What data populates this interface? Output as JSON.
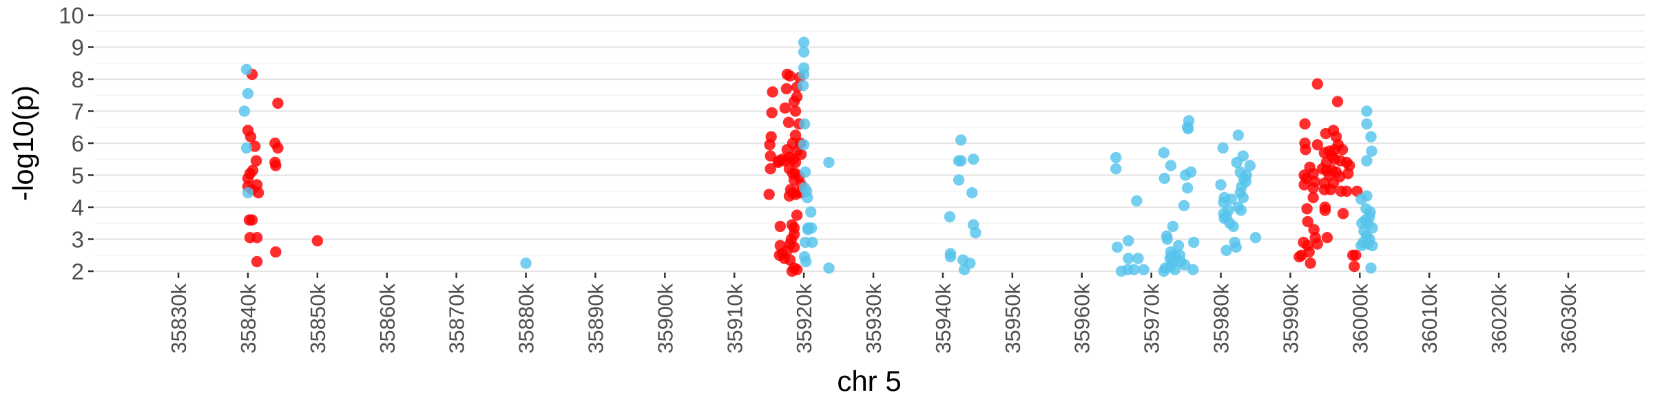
{
  "chart_data": {
    "type": "scatter",
    "xlabel": "chr 5",
    "ylabel": "-log10(p)",
    "xlim": [
      35818,
      36041
    ],
    "ylim": [
      2,
      10
    ],
    "x_ticks": [
      35830,
      35840,
      35850,
      35860,
      35870,
      35880,
      35890,
      35900,
      35910,
      35920,
      35930,
      35940,
      35950,
      35960,
      35970,
      35980,
      35990,
      36000,
      36010,
      36020,
      36030
    ],
    "x_tick_labels": [
      "35830k",
      "35840k",
      "35850k",
      "35860k",
      "35870k",
      "35880k",
      "35890k",
      "35900k",
      "35910k",
      "35920k",
      "35930k",
      "35940k",
      "35950k",
      "35960k",
      "35970k",
      "35980k",
      "35990k",
      "36000k",
      "36010k",
      "36020k",
      "36030k"
    ],
    "y_ticks": [
      2,
      3,
      4,
      5,
      6,
      7,
      8,
      9,
      10
    ],
    "y_tick_labels": [
      "2",
      "3",
      "4",
      "5",
      "6",
      "7",
      "8",
      "9",
      "10"
    ],
    "grid": true,
    "series": [
      {
        "color": "#FF0000",
        "points": [
          [
            35840.6,
            8.15
          ],
          [
            35844.3,
            7.25
          ],
          [
            35840.0,
            6.4
          ],
          [
            35840.4,
            6.2
          ],
          [
            35841.0,
            5.9
          ],
          [
            35843.9,
            6.0
          ],
          [
            35844.3,
            5.85
          ],
          [
            35841.2,
            5.45
          ],
          [
            35843.9,
            5.4
          ],
          [
            35844.0,
            5.3
          ],
          [
            35840.7,
            5.15
          ],
          [
            35840.3,
            5.05
          ],
          [
            35840.0,
            4.9
          ],
          [
            35840.0,
            4.65
          ],
          [
            35841.3,
            4.7
          ],
          [
            35840.6,
            4.55
          ],
          [
            35841.5,
            4.45
          ],
          [
            35840.2,
            3.6
          ],
          [
            35840.6,
            3.6
          ],
          [
            35840.3,
            3.05
          ],
          [
            35841.3,
            3.05
          ],
          [
            35844.0,
            2.6
          ],
          [
            35841.3,
            2.3
          ],
          [
            35850.0,
            2.95
          ],
          [
            35917.6,
            8.15
          ],
          [
            35918.0,
            8.1
          ],
          [
            35919.4,
            8.05
          ],
          [
            35919.0,
            7.75
          ],
          [
            35917.5,
            7.7
          ],
          [
            35915.5,
            7.6
          ],
          [
            35919.0,
            7.45
          ],
          [
            35918.6,
            7.3
          ],
          [
            35917.3,
            7.1
          ],
          [
            35915.4,
            6.95
          ],
          [
            35918.8,
            7.0
          ],
          [
            35917.8,
            6.65
          ],
          [
            35919.3,
            6.6
          ],
          [
            35915.3,
            6.2
          ],
          [
            35915.1,
            5.95
          ],
          [
            35918.8,
            6.25
          ],
          [
            35918.4,
            6.0
          ],
          [
            35919.5,
            6.0
          ],
          [
            35917.6,
            5.8
          ],
          [
            35919.0,
            5.75
          ],
          [
            35915.2,
            5.6
          ],
          [
            35919.6,
            5.65
          ],
          [
            35916.9,
            5.5
          ],
          [
            35916.4,
            5.45
          ],
          [
            35917.3,
            5.45
          ],
          [
            35917.9,
            5.55
          ],
          [
            35918.5,
            5.5
          ],
          [
            35918.8,
            5.4
          ],
          [
            35916.3,
            5.4
          ],
          [
            35915.2,
            5.2
          ],
          [
            35917.9,
            5.2
          ],
          [
            35918.4,
            5.05
          ],
          [
            35918.8,
            5.05
          ],
          [
            35918.6,
            4.85
          ],
          [
            35919.3,
            4.95
          ],
          [
            35919.6,
            4.7
          ],
          [
            35918.1,
            4.55
          ],
          [
            35918.4,
            4.45
          ],
          [
            35917.9,
            4.35
          ],
          [
            35918.8,
            4.4
          ],
          [
            35919.5,
            4.45
          ],
          [
            35915.0,
            4.4
          ],
          [
            35919.0,
            3.75
          ],
          [
            35918.3,
            3.45
          ],
          [
            35918.6,
            3.35
          ],
          [
            35916.6,
            3.4
          ],
          [
            35918.6,
            3.15
          ],
          [
            35918.2,
            3.0
          ],
          [
            35918.0,
            2.85
          ],
          [
            35916.6,
            2.8
          ],
          [
            35918.6,
            2.75
          ],
          [
            35917.6,
            2.65
          ],
          [
            35916.9,
            2.55
          ],
          [
            35916.5,
            2.5
          ],
          [
            35917.2,
            2.4
          ],
          [
            35918.0,
            2.35
          ],
          [
            35918.6,
            2.1
          ],
          [
            35919.0,
            2.05
          ],
          [
            35918.3,
            2.0
          ],
          [
            35993.9,
            7.85
          ],
          [
            35996.8,
            7.3
          ],
          [
            35992.1,
            6.6
          ],
          [
            35995.1,
            6.3
          ],
          [
            35996.2,
            6.4
          ],
          [
            35996.6,
            6.2
          ],
          [
            35992.1,
            6.0
          ],
          [
            35993.9,
            5.95
          ],
          [
            35996.9,
            5.95
          ],
          [
            35994.9,
            5.7
          ],
          [
            35995.6,
            5.75
          ],
          [
            35996.4,
            5.8
          ],
          [
            35992.2,
            5.8
          ],
          [
            35997.5,
            5.8
          ],
          [
            35996.0,
            5.6
          ],
          [
            35996.4,
            5.5
          ],
          [
            35995.2,
            5.4
          ],
          [
            35997.2,
            5.45
          ],
          [
            35998.1,
            5.4
          ],
          [
            35998.5,
            5.3
          ],
          [
            35992.8,
            5.25
          ],
          [
            35994.6,
            5.2
          ],
          [
            35995.2,
            5.15
          ],
          [
            35996.0,
            5.15
          ],
          [
            35996.6,
            5.1
          ],
          [
            35993.3,
            5.05
          ],
          [
            35992.0,
            5.0
          ],
          [
            35995.6,
            5.0
          ],
          [
            35997.1,
            4.95
          ],
          [
            35998.3,
            5.05
          ],
          [
            35992.3,
            4.9
          ],
          [
            35993.5,
            4.8
          ],
          [
            35994.9,
            4.75
          ],
          [
            35996.2,
            4.75
          ],
          [
            35992.0,
            4.7
          ],
          [
            35993.3,
            4.6
          ],
          [
            35994.9,
            4.55
          ],
          [
            35995.8,
            4.55
          ],
          [
            35997.3,
            4.5
          ],
          [
            35998.1,
            4.5
          ],
          [
            35993.3,
            4.3
          ],
          [
            35995.0,
            4.0
          ],
          [
            35992.4,
            3.95
          ],
          [
            35995.0,
            3.9
          ],
          [
            35997.6,
            3.8
          ],
          [
            35992.5,
            3.55
          ],
          [
            35993.4,
            3.3
          ],
          [
            35993.6,
            3.05
          ],
          [
            35995.3,
            3.05
          ],
          [
            35991.9,
            2.9
          ],
          [
            35992.5,
            2.8
          ],
          [
            35993.9,
            2.85
          ],
          [
            35992.7,
            2.6
          ],
          [
            35991.6,
            2.5
          ],
          [
            35991.3,
            2.45
          ],
          [
            35992.9,
            2.25
          ],
          [
            35999.0,
            2.5
          ],
          [
            35999.4,
            2.5
          ],
          [
            35999.2,
            2.15
          ],
          [
            35999.6,
            4.5
          ]
        ]
      },
      {
        "color": "#56C3EB",
        "points": [
          [
            35839.8,
            8.3
          ],
          [
            35840.0,
            7.55
          ],
          [
            35839.5,
            7.0
          ],
          [
            35839.8,
            5.85
          ],
          [
            35840.0,
            4.45
          ],
          [
            35880.0,
            2.25
          ],
          [
            35920.0,
            9.15
          ],
          [
            35920.0,
            8.85
          ],
          [
            35920.0,
            8.35
          ],
          [
            35920.0,
            8.15
          ],
          [
            35919.9,
            7.8
          ],
          [
            35920.1,
            6.6
          ],
          [
            35920.0,
            5.95
          ],
          [
            35920.2,
            5.1
          ],
          [
            35920.1,
            4.6
          ],
          [
            35920.4,
            4.5
          ],
          [
            35920.5,
            4.3
          ],
          [
            35921.0,
            3.85
          ],
          [
            35920.6,
            3.35
          ],
          [
            35921.1,
            3.35
          ],
          [
            35920.6,
            3.3
          ],
          [
            35920.2,
            2.9
          ],
          [
            35921.2,
            2.9
          ],
          [
            35920.1,
            2.45
          ],
          [
            35920.3,
            2.3
          ],
          [
            35923.6,
            5.4
          ],
          [
            35923.6,
            2.1
          ],
          [
            35942.6,
            6.1
          ],
          [
            35942.3,
            5.45
          ],
          [
            35942.6,
            5.45
          ],
          [
            35944.4,
            5.5
          ],
          [
            35942.3,
            4.85
          ],
          [
            35944.2,
            4.45
          ],
          [
            35941.0,
            3.7
          ],
          [
            35944.4,
            3.45
          ],
          [
            35944.7,
            3.2
          ],
          [
            35941.1,
            2.55
          ],
          [
            35941.1,
            2.45
          ],
          [
            35942.9,
            2.35
          ],
          [
            35943.9,
            2.25
          ],
          [
            35943.1,
            2.05
          ],
          [
            35964.9,
            5.55
          ],
          [
            35964.9,
            5.2
          ],
          [
            35967.9,
            4.2
          ],
          [
            35966.7,
            2.95
          ],
          [
            35965.1,
            2.75
          ],
          [
            35966.7,
            2.4
          ],
          [
            35968.1,
            2.4
          ],
          [
            35966.6,
            2.05
          ],
          [
            35967.5,
            2.05
          ],
          [
            35968.9,
            2.05
          ],
          [
            35965.7,
            2.0
          ],
          [
            35971.8,
            5.7
          ],
          [
            35972.8,
            5.3
          ],
          [
            35974.9,
            5.0
          ],
          [
            35975.7,
            5.1
          ],
          [
            35975.2,
            6.5
          ],
          [
            35975.3,
            6.45
          ],
          [
            35975.4,
            6.7
          ],
          [
            35971.9,
            4.9
          ],
          [
            35975.2,
            4.6
          ],
          [
            35974.7,
            4.05
          ],
          [
            35972.2,
            3.1
          ],
          [
            35973.1,
            3.4
          ],
          [
            35972.3,
            3.0
          ],
          [
            35973.9,
            2.8
          ],
          [
            35972.8,
            2.6
          ],
          [
            35972.7,
            2.4
          ],
          [
            35972.9,
            2.45
          ],
          [
            35973.4,
            2.5
          ],
          [
            35973.2,
            2.3
          ],
          [
            35974.1,
            2.5
          ],
          [
            35974.2,
            2.3
          ],
          [
            35974.8,
            2.2
          ],
          [
            35972.7,
            2.15
          ],
          [
            35973.4,
            2.05
          ],
          [
            35971.8,
            2.0
          ],
          [
            35976.0,
            2.05
          ],
          [
            35976.1,
            2.9
          ],
          [
            35972.0,
            2.1
          ],
          [
            35980.3,
            5.85
          ],
          [
            35982.5,
            6.25
          ],
          [
            35983.2,
            5.6
          ],
          [
            35984.2,
            5.3
          ],
          [
            35982.3,
            5.4
          ],
          [
            35983.7,
            5.0
          ],
          [
            35983.3,
            4.9
          ],
          [
            35982.8,
            5.1
          ],
          [
            35983.6,
            4.8
          ],
          [
            35980.0,
            4.7
          ],
          [
            35983.0,
            4.65
          ],
          [
            35982.8,
            4.45
          ],
          [
            35983.2,
            4.3
          ],
          [
            35981.5,
            4.25
          ],
          [
            35980.5,
            4.3
          ],
          [
            35980.4,
            4.15
          ],
          [
            35982.5,
            4.0
          ],
          [
            35982.9,
            3.9
          ],
          [
            35981.1,
            3.9
          ],
          [
            35980.4,
            3.8
          ],
          [
            35980.8,
            3.7
          ],
          [
            35980.5,
            3.65
          ],
          [
            35981.3,
            3.5
          ],
          [
            35981.8,
            3.4
          ],
          [
            35985.0,
            3.05
          ],
          [
            35982.0,
            2.9
          ],
          [
            35982.2,
            2.75
          ],
          [
            35980.8,
            2.65
          ],
          [
            36001.0,
            7.0
          ],
          [
            36001.0,
            6.6
          ],
          [
            36001.6,
            6.2
          ],
          [
            36001.7,
            5.75
          ],
          [
            36001.0,
            5.45
          ],
          [
            36001.0,
            4.35
          ],
          [
            36000.2,
            4.25
          ],
          [
            36000.9,
            3.95
          ],
          [
            36001.5,
            3.85
          ],
          [
            36001.4,
            3.7
          ],
          [
            36000.8,
            3.6
          ],
          [
            36001.2,
            3.5
          ],
          [
            36000.3,
            3.5
          ],
          [
            36001.8,
            3.35
          ],
          [
            36000.6,
            3.25
          ],
          [
            36001.0,
            3.1
          ],
          [
            36001.4,
            3.0
          ],
          [
            36000.5,
            2.9
          ],
          [
            36001.1,
            2.85
          ],
          [
            36001.8,
            2.8
          ],
          [
            36000.2,
            2.8
          ],
          [
            36001.6,
            2.1
          ]
        ]
      }
    ]
  }
}
